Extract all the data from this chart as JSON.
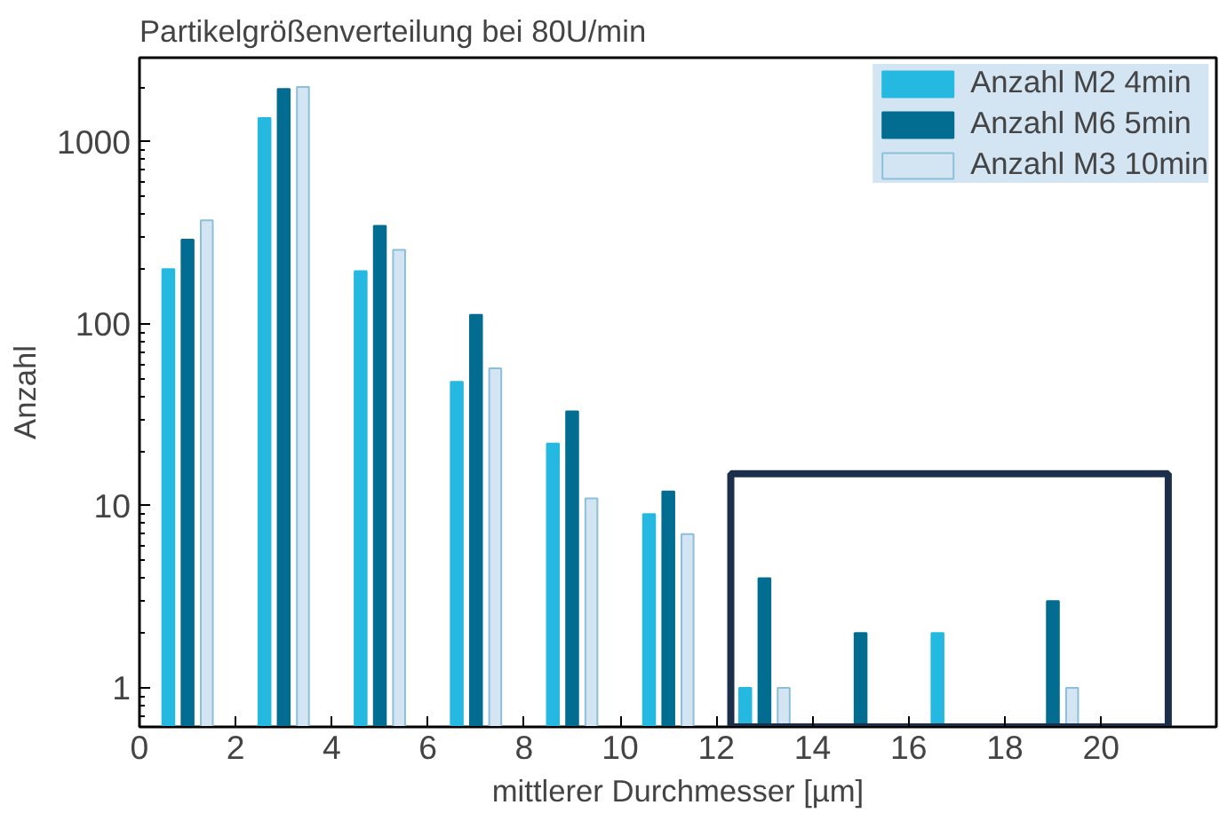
{
  "chart_data": {
    "type": "bar",
    "title": "Partikelgrößenverteilung bei 80U/min",
    "xlabel": "mittlerer Durchmesser [µm]",
    "ylabel": "Anzahl",
    "log": "y",
    "grid": false,
    "legend": "top right",
    "xlim": [
      0,
      22.4
    ],
    "xticks": [
      0,
      2,
      4,
      6,
      8,
      10,
      12,
      14,
      16,
      18,
      20
    ],
    "ylim": [
      0.61,
      2900
    ],
    "yticks": [
      1,
      10,
      100,
      1000
    ],
    "series": [
      {
        "name": "Anzahl M2 4min",
        "color": "#25b9e1",
        "x": [
          0.6,
          2.6,
          4.6,
          6.6,
          8.6,
          10.6,
          12.6,
          16.6
        ],
        "values": [
          200,
          1350,
          195,
          48,
          22,
          9,
          1,
          2
        ]
      },
      {
        "name": "Anzahl M6 5min",
        "color": "#036d91",
        "x": [
          1.0,
          3.0,
          5.0,
          7.0,
          9.0,
          11.0,
          13.0,
          15.0,
          19.0
        ],
        "values": [
          290,
          1950,
          345,
          112,
          33,
          12,
          4,
          2,
          3
        ]
      },
      {
        "name": "Anzahl M3 10min",
        "color": "#d3e4f3",
        "x": [
          1.4,
          3.4,
          5.4,
          7.4,
          9.4,
          11.4,
          13.4,
          19.4
        ],
        "values": [
          370,
          2000,
          255,
          57,
          11,
          7,
          1,
          1
        ]
      }
    ]
  }
}
